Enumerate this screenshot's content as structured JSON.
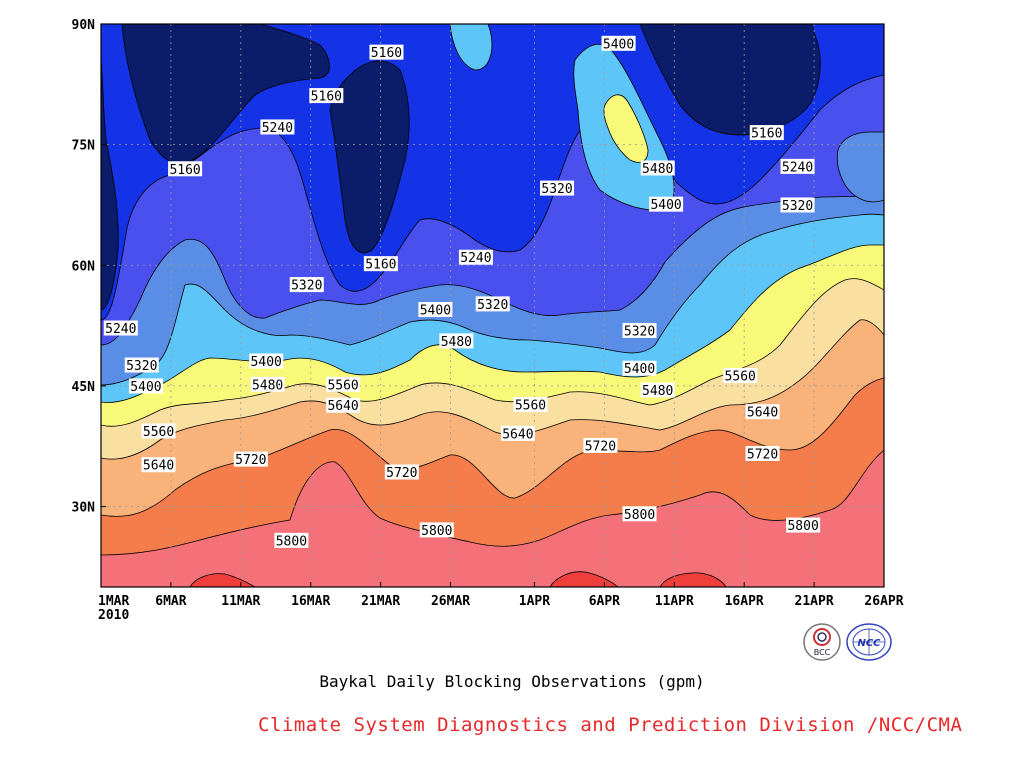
{
  "chart_data": {
    "type": "contour",
    "title": "Baykal Daily Blocking Observations (gpm)",
    "subtitle": "",
    "xlabel": "",
    "ylabel": "",
    "x_start_date": "1MAR",
    "x_year_label": "2010",
    "x_ticks": [
      "1MAR",
      "6MAR",
      "11MAR",
      "16MAR",
      "21MAR",
      "26MAR",
      "1APR",
      "6APR",
      "11APR",
      "16APR",
      "21APR",
      "26APR"
    ],
    "x_tick_days": [
      0,
      5,
      10,
      15,
      20,
      25,
      31,
      36,
      41,
      46,
      51,
      56
    ],
    "xlim_days": [
      0,
      56
    ],
    "y_ticks": [
      "30N",
      "45N",
      "60N",
      "75N",
      "90N"
    ],
    "y_tick_values": [
      30,
      45,
      60,
      75,
      90
    ],
    "ylim": [
      20,
      90
    ],
    "grid": true,
    "contour_levels": [
      5160,
      5240,
      5320,
      5400,
      5480,
      5560,
      5640,
      5720,
      5800,
      5880
    ],
    "contour_labels": [
      {
        "text": "5160",
        "x": 19.2,
        "y": 86.5
      },
      {
        "text": "5160",
        "x": 14.9,
        "y": 81.1
      },
      {
        "text": "5160",
        "x": 4.8,
        "y": 72.0
      },
      {
        "text": "5160",
        "x": 18.8,
        "y": 60.2
      },
      {
        "text": "5160",
        "x": 46.4,
        "y": 76.5
      },
      {
        "text": "5240",
        "x": 11.4,
        "y": 77.2
      },
      {
        "text": "5240",
        "x": 25.6,
        "y": 61.0
      },
      {
        "text": "5240",
        "x": 0.2,
        "y": 52.2
      },
      {
        "text": "5240",
        "x": 48.6,
        "y": 72.3
      },
      {
        "text": "5320",
        "x": 13.5,
        "y": 57.6
      },
      {
        "text": "5320",
        "x": 1.7,
        "y": 47.6
      },
      {
        "text": "5320",
        "x": 26.8,
        "y": 55.2
      },
      {
        "text": "5320",
        "x": 31.4,
        "y": 69.6
      },
      {
        "text": "5320",
        "x": 37.3,
        "y": 51.9
      },
      {
        "text": "5320",
        "x": 48.6,
        "y": 67.5
      },
      {
        "text": "5400",
        "x": 35.8,
        "y": 87.6
      },
      {
        "text": "5400",
        "x": 2.0,
        "y": 45.0
      },
      {
        "text": "5400",
        "x": 10.6,
        "y": 48.1
      },
      {
        "text": "5400",
        "x": 22.7,
        "y": 54.5
      },
      {
        "text": "5400",
        "x": 39.2,
        "y": 67.6
      },
      {
        "text": "5400",
        "x": 37.3,
        "y": 47.2
      },
      {
        "text": "5480",
        "x": 10.7,
        "y": 45.2
      },
      {
        "text": "5480",
        "x": 24.2,
        "y": 50.6
      },
      {
        "text": "5480",
        "x": 38.6,
        "y": 72.1
      },
      {
        "text": "5480",
        "x": 38.6,
        "y": 44.5
      },
      {
        "text": "5560",
        "x": 2.9,
        "y": 39.4
      },
      {
        "text": "5560",
        "x": 16.1,
        "y": 45.2
      },
      {
        "text": "5560",
        "x": 29.5,
        "y": 42.7
      },
      {
        "text": "5560",
        "x": 44.5,
        "y": 46.3
      },
      {
        "text": "5640",
        "x": 2.9,
        "y": 35.2
      },
      {
        "text": "5640",
        "x": 16.1,
        "y": 42.6
      },
      {
        "text": "5640",
        "x": 28.6,
        "y": 39.1
      },
      {
        "text": "5640",
        "x": 46.1,
        "y": 41.8
      },
      {
        "text": "5720",
        "x": 9.5,
        "y": 35.9
      },
      {
        "text": "5720",
        "x": 20.3,
        "y": 34.3
      },
      {
        "text": "5720",
        "x": 34.5,
        "y": 37.6
      },
      {
        "text": "5720",
        "x": 46.1,
        "y": 36.6
      },
      {
        "text": "5800",
        "x": 12.4,
        "y": 25.8
      },
      {
        "text": "5800",
        "x": 22.8,
        "y": 27.1
      },
      {
        "text": "5800",
        "x": 37.3,
        "y": 29.1
      },
      {
        "text": "5800",
        "x": 49.0,
        "y": 27.7
      }
    ]
  },
  "footer": {
    "title": "Baykal Daily Blocking Observations (gpm)",
    "organization": "Climate System Diagnostics and Prediction Division /NCC/CMA",
    "organization_color": "#e8282a",
    "logo_bcc_text": "BCC",
    "logo_ncc_text": "NCC"
  },
  "palette": [
    "#0a1c6a",
    "#1533e6",
    "#4a50ee",
    "#5a8ee6",
    "#5ec5f8",
    "#f9f979",
    "#f9dfa0",
    "#f8b27a",
    "#f57d4b",
    "#f5717a",
    "#ef3e3c"
  ]
}
